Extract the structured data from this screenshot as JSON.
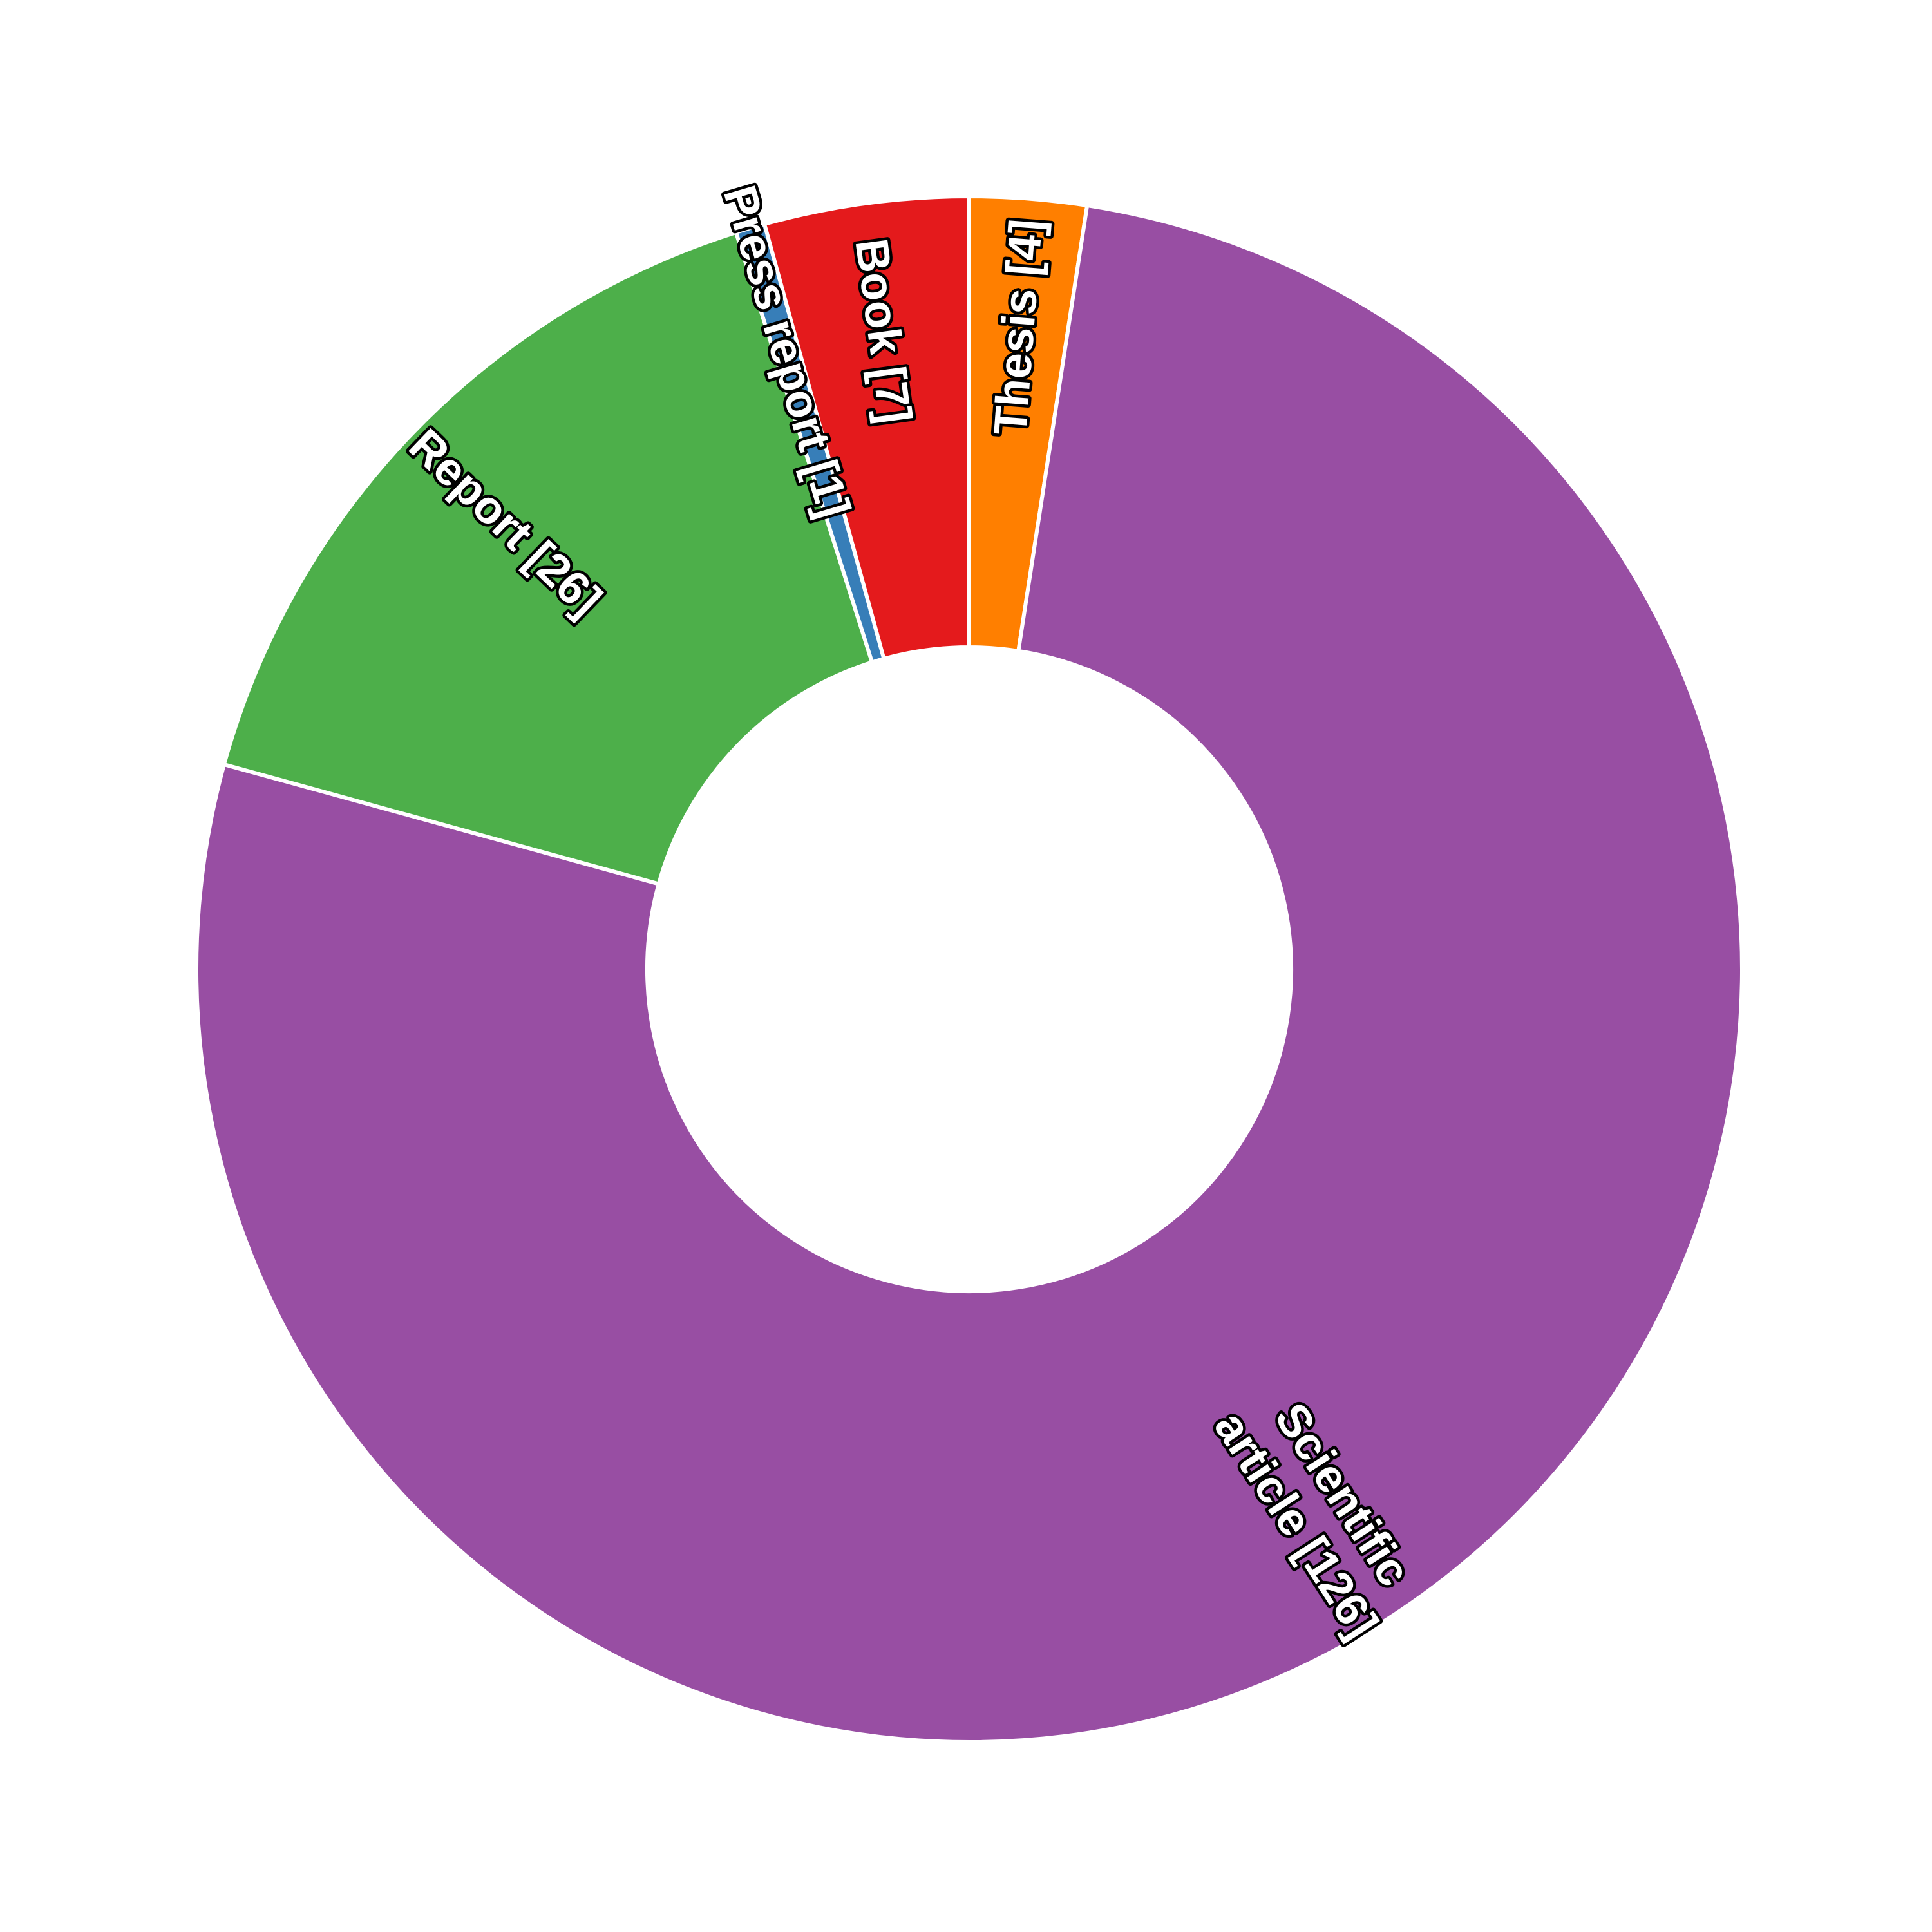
{
  "chart_data": {
    "type": "pie",
    "variant": "donut",
    "slices": [
      {
        "label": "Thesis [4]",
        "lines": [
          "Thesis [4]"
        ],
        "value": 4,
        "color": "#ff7f00"
      },
      {
        "label": "Scientific article [126]",
        "lines": [
          "Scientific",
          "article [126]"
        ],
        "value": 126,
        "color": "#984ea3"
      },
      {
        "label": "Report [26]",
        "lines": [
          "Report [26]"
        ],
        "value": 26,
        "color": "#4daf4a"
      },
      {
        "label": "Press report [1]",
        "lines": [
          "Press report [1]"
        ],
        "value": 1,
        "color": "#377eb8"
      },
      {
        "label": "Book [7]",
        "lines": [
          "Book [7]"
        ],
        "value": 7,
        "color": "#e41a1c"
      }
    ],
    "start_angle": "12 o'clock",
    "direction": "clockwise",
    "legend": "none",
    "labels": "radial, inside slices, white text with black outline"
  }
}
